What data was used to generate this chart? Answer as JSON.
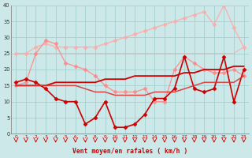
{
  "x": [
    0,
    1,
    2,
    3,
    4,
    5,
    6,
    7,
    8,
    9,
    10,
    11,
    12,
    13,
    14,
    15,
    16,
    17,
    18,
    19,
    20,
    21,
    22,
    23
  ],
  "series": [
    {
      "y": [
        25,
        25,
        25,
        25,
        25,
        25,
        25,
        25,
        25,
        25,
        25,
        25,
        25,
        25,
        25,
        25,
        25,
        25,
        25,
        25,
        25,
        25,
        25,
        27
      ],
      "color": "#ffaaaa",
      "marker": null,
      "linewidth": 1.0,
      "alpha": 0.7
    },
    {
      "y": [
        25,
        25,
        27,
        28,
        27,
        27,
        27,
        27,
        27,
        28,
        29,
        30,
        31,
        32,
        33,
        34,
        35,
        36,
        37,
        38,
        34,
        40,
        33,
        27
      ],
      "color": "#ffaaaa",
      "marker": "D",
      "markersize": 2.5,
      "linewidth": 1.0,
      "alpha": 0.85
    },
    {
      "y": [
        15,
        16,
        25,
        29,
        28,
        22,
        21,
        20,
        18,
        15,
        13,
        13,
        13,
        14,
        10,
        10,
        20,
        24,
        22,
        20,
        19,
        19,
        20,
        18
      ],
      "color": "#ff8888",
      "marker": "D",
      "markersize": 2.5,
      "linewidth": 1.0,
      "alpha": 0.85
    },
    {
      "y": [
        15,
        15,
        15,
        15,
        16,
        16,
        16,
        16,
        16,
        17,
        17,
        17,
        18,
        18,
        18,
        18,
        18,
        19,
        19,
        20,
        20,
        20,
        21,
        21
      ],
      "color": "#cc0000",
      "marker": null,
      "linewidth": 1.3,
      "alpha": 1.0
    },
    {
      "y": [
        16,
        17,
        16,
        14,
        11,
        10,
        10,
        3,
        5,
        10,
        2,
        2,
        3,
        6,
        11,
        11,
        14,
        24,
        14,
        13,
        14,
        24,
        10,
        20
      ],
      "color": "#cc0000",
      "marker": "D",
      "markersize": 2.5,
      "linewidth": 1.2,
      "alpha": 1.0
    },
    {
      "y": [
        15,
        15,
        15,
        15,
        15,
        15,
        15,
        14,
        13,
        13,
        12,
        12,
        12,
        12,
        13,
        13,
        13,
        14,
        15,
        16,
        16,
        16,
        16,
        18
      ],
      "color": "#dd3333",
      "marker": null,
      "linewidth": 1.1,
      "alpha": 0.9
    }
  ],
  "xlabel": "Vent moyen/en rafales ( km/h )",
  "ylim": [
    0,
    40
  ],
  "xlim": [
    -0.5,
    23.5
  ],
  "yticks": [
    0,
    5,
    10,
    15,
    20,
    25,
    30,
    35,
    40
  ],
  "xticks": [
    0,
    1,
    2,
    3,
    4,
    5,
    6,
    7,
    8,
    9,
    10,
    11,
    12,
    13,
    14,
    15,
    16,
    17,
    18,
    19,
    20,
    21,
    22,
    23
  ],
  "bg_color": "#cce8e8",
  "grid_color": "#99cccc",
  "axis_color": "#cc0000",
  "label_color": "#cc0000"
}
